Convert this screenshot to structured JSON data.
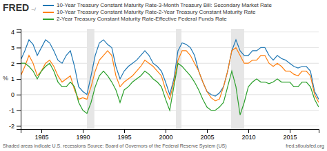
{
  "chart_data": {
    "type": "line",
    "title": "FRED",
    "ylabel": "%",
    "annotations": [
      "~/",
      "Shaded areas indicate U.S. recessions Source: Board of Governors of the Federal Reserve System (US)",
      "fred.stlouisfed.org"
    ],
    "x": [
      1982.5,
      1983,
      1983.5,
      1984,
      1984.5,
      1985,
      1985.5,
      1986,
      1986.5,
      1987,
      1987.5,
      1988,
      1988.5,
      1989,
      1989.5,
      1990,
      1990.5,
      1991,
      1991.5,
      1992,
      1992.5,
      1993,
      1993.5,
      1994,
      1994.5,
      1995,
      1995.5,
      1996,
      1996.5,
      1997,
      1997.5,
      1998,
      1998.5,
      1999,
      1999.5,
      2000,
      2000.5,
      2001,
      2001.5,
      2002,
      2002.5,
      2003,
      2003.5,
      2004,
      2004.5,
      2005,
      2005.5,
      2006,
      2006.5,
      2007,
      2007.5,
      2008,
      2008.5,
      2009,
      2009.5,
      2010,
      2010.5,
      2011,
      2011.5,
      2012,
      2012.5,
      2013,
      2013.5,
      2014,
      2014.5,
      2015,
      2015.5,
      2016,
      2016.5,
      2017,
      2017.5,
      2018,
      2018.5
    ],
    "series": [
      {
        "name": "10-Year Treasury Constant Maturity Rate-3-Month Treasury Bill: Secondary Market Rate",
        "values": [
          2.2,
          2.8,
          3.5,
          3.2,
          2.5,
          3.0,
          3.5,
          3.3,
          2.8,
          2.2,
          2.0,
          2.5,
          2.8,
          1.8,
          0.5,
          0.2,
          0.0,
          1.2,
          2.5,
          3.3,
          3.5,
          3.2,
          3.0,
          1.8,
          1.0,
          1.5,
          1.8,
          2.0,
          2.2,
          2.5,
          2.8,
          2.5,
          2.0,
          1.8,
          1.5,
          0.8,
          0.0,
          1.0,
          2.8,
          3.3,
          3.2,
          3.0,
          2.5,
          1.5,
          0.8,
          0.2,
          0.0,
          -0.1,
          0.1,
          0.5,
          1.5,
          2.8,
          3.5,
          2.8,
          2.5,
          2.5,
          2.8,
          2.8,
          3.0,
          3.0,
          2.5,
          2.2,
          2.5,
          2.3,
          2.2,
          2.0,
          1.8,
          1.7,
          1.8,
          1.8,
          1.5,
          0.2,
          -0.3
        ]
      },
      {
        "name": "10-Year Treasury Constant Maturity Rate-2-Year Treasury Constant Maturity Rate",
        "values": [
          1.2,
          1.8,
          2.5,
          2.0,
          1.2,
          1.5,
          2.0,
          2.2,
          1.8,
          1.2,
          0.8,
          1.0,
          1.2,
          0.3,
          -0.3,
          -0.2,
          -0.3,
          0.5,
          1.5,
          2.2,
          2.5,
          2.8,
          2.5,
          1.2,
          0.5,
          0.8,
          1.0,
          1.2,
          1.5,
          1.8,
          2.2,
          2.0,
          1.8,
          1.5,
          1.2,
          0.3,
          -0.3,
          0.8,
          2.2,
          2.8,
          2.8,
          2.5,
          2.0,
          1.5,
          0.8,
          0.2,
          -0.2,
          -0.4,
          -0.3,
          0.5,
          1.5,
          2.8,
          3.0,
          2.5,
          2.0,
          2.0,
          2.2,
          2.2,
          2.5,
          2.5,
          2.0,
          1.8,
          2.0,
          1.8,
          1.5,
          1.5,
          1.3,
          1.2,
          1.5,
          1.5,
          1.2,
          0.0,
          -0.5
        ]
      },
      {
        "name": "2-Year Treasury Constant Maturity Rate-Effective Federal Funds Rate",
        "values": [
          2.0,
          2.0,
          1.8,
          1.5,
          1.0,
          1.5,
          1.8,
          2.0,
          1.5,
          0.8,
          0.5,
          0.5,
          0.8,
          0.5,
          -0.5,
          -1.0,
          -1.2,
          -0.5,
          0.5,
          1.2,
          1.5,
          1.2,
          0.8,
          0.3,
          -0.5,
          0.3,
          0.5,
          0.8,
          1.0,
          1.2,
          1.5,
          1.3,
          1.0,
          0.8,
          0.5,
          -0.3,
          -1.0,
          0.5,
          2.0,
          1.8,
          1.5,
          1.2,
          0.8,
          0.3,
          -0.3,
          -0.8,
          -1.0,
          -1.0,
          -0.8,
          -0.5,
          0.5,
          1.5,
          0.5,
          -1.3,
          -0.5,
          0.5,
          0.8,
          1.0,
          0.8,
          0.8,
          0.7,
          0.8,
          1.0,
          0.8,
          0.8,
          0.8,
          0.5,
          0.5,
          0.8,
          0.8,
          0.5,
          -0.3,
          -0.8
        ]
      }
    ],
    "recessions": [
      [
        1990.5,
        1991.4
      ],
      [
        2001.25,
        2001.92
      ],
      [
        2007.92,
        2009.5
      ]
    ],
    "xlim": [
      1982.5,
      2018.5
    ],
    "xticks": [
      1985,
      1990,
      1995,
      2000,
      2005,
      2010,
      2015
    ],
    "ylim": [
      -2.2,
      4.2
    ],
    "yticks": [
      -2,
      -1,
      0,
      1,
      2,
      3,
      4
    ],
    "grid": "y"
  }
}
